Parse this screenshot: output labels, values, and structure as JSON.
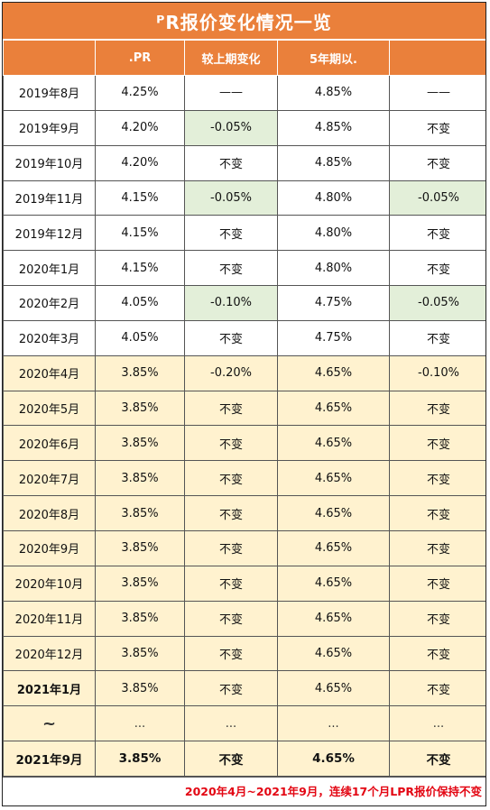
{
  "title": "ᴾR报价变化情况一览",
  "headers": [
    ".PR",
    "较上期变化",
    "5年期以.",
    ""
  ],
  "rows": [
    {
      "month": "2019年8月",
      "lpr1": "4.25%",
      "chg1": "——",
      "lpr5": "4.85%",
      "chg5": "——"
    },
    {
      "month": "2019年9月",
      "lpr1": "4.20%",
      "chg1": "-0.05%",
      "lpr5": "4.85%",
      "chg5": "不变"
    },
    {
      "month": "2019年10月",
      "lpr1": "4.20%",
      "chg1": "不变",
      "lpr5": "4.85%",
      "chg5": "不变"
    },
    {
      "month": "2019年11月",
      "lpr1": "4.15%",
      "chg1": "-0.05%",
      "lpr5": "4.80%",
      "chg5": "-0.05%"
    },
    {
      "month": "2019年12月",
      "lpr1": "4.15%",
      "chg1": "不变",
      "lpr5": "4.80%",
      "chg5": "不变"
    },
    {
      "month": "2020年1月",
      "lpr1": "4.15%",
      "chg1": "不变",
      "lpr5": "4.80%",
      "chg5": "不变"
    },
    {
      "month": "2020年2月",
      "lpr1": "4.05%",
      "chg1": "-0.10%",
      "lpr5": "4.75%",
      "chg5": "-0.05%"
    },
    {
      "month": "2020年3月",
      "lpr1": "4.05%",
      "chg1": "不变",
      "lpr5": "4.75%",
      "chg5": "不变"
    },
    {
      "month": "2020年4月",
      "lpr1": "3.85%",
      "chg1": "-0.20%",
      "lpr5": "4.65%",
      "chg5": "-0.10%"
    },
    {
      "month": "2020年5月",
      "lpr1": "3.85%",
      "chg1": "不变",
      "lpr5": "4.65%",
      "chg5": "不变"
    },
    {
      "month": "2020年6月",
      "lpr1": "3.85%",
      "chg1": "不变",
      "lpr5": "4.65%",
      "chg5": "不变"
    },
    {
      "month": "2020年7月",
      "lpr1": "3.85%",
      "chg1": "不变",
      "lpr5": "4.65%",
      "chg5": "不变"
    },
    {
      "month": "2020年8月",
      "lpr1": "3.85%",
      "chg1": "不变",
      "lpr5": "4.65%",
      "chg5": "不变"
    },
    {
      "month": "2020年9月",
      "lpr1": "3.85%",
      "chg1": "不变",
      "lpr5": "4.65%",
      "chg5": "不变"
    },
    {
      "month": "2020年10月",
      "lpr1": "3.85%",
      "chg1": "不变",
      "lpr5": "4.65%",
      "chg5": "不变"
    },
    {
      "month": "2020年11月",
      "lpr1": "3.85%",
      "chg1": "不变",
      "lpr5": "4.65%",
      "chg5": "不变"
    },
    {
      "month": "2020年12月",
      "lpr1": "3.85%",
      "chg1": "不变",
      "lpr5": "4.65%",
      "chg5": "不变"
    },
    {
      "month": "2021年1月",
      "lpr1": "3.85%",
      "chg1": "不变",
      "lpr5": "4.65%",
      "chg5": "不变"
    },
    {
      "month": "~",
      "lpr1": "...",
      "chg1": "...",
      "lpr5": "...",
      "chg5": "..."
    },
    {
      "month": "2021年9月",
      "lpr1": "3.85%",
      "chg1": "不变",
      "lpr5": "4.65%",
      "chg5": "不变"
    }
  ],
  "footer_note": "2020年4月~2021年9月，连续17个月LPR报价保持不变",
  "colors": {
    "header_bg": "#ea803b",
    "period_highlight": "#fff2cf",
    "change_highlight": "#e3efd9",
    "note_text": "#e30613"
  }
}
